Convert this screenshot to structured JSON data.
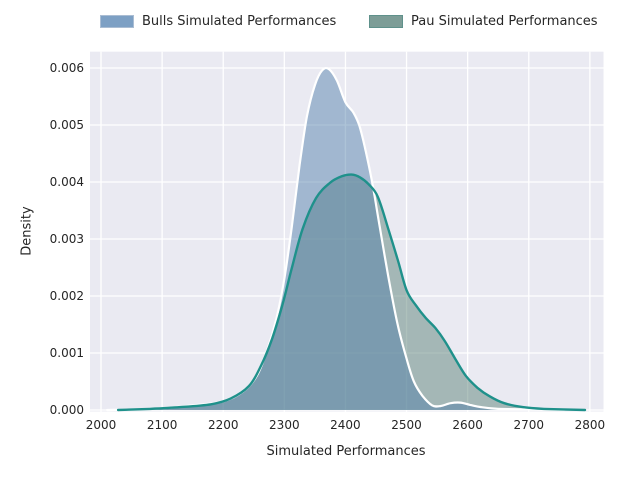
{
  "legend": {
    "items": [
      {
        "label": "Bulls Simulated Performances",
        "swatch_color": "#7da0c4",
        "swatch_border": "#aabdd3"
      },
      {
        "label": "Pau Simulated Performances",
        "swatch_color": "#7d9d97",
        "swatch_border": "#5f918b"
      }
    ]
  },
  "axes": {
    "xlabel": "Simulated Performances",
    "ylabel": "Density",
    "xticks": [
      {
        "value": 2000,
        "label": "2000"
      },
      {
        "value": 2100,
        "label": "2100"
      },
      {
        "value": 2200,
        "label": "2200"
      },
      {
        "value": 2300,
        "label": "2300"
      },
      {
        "value": 2400,
        "label": "2400"
      },
      {
        "value": 2500,
        "label": "2500"
      },
      {
        "value": 2600,
        "label": "2600"
      },
      {
        "value": 2700,
        "label": "2700"
      },
      {
        "value": 2800,
        "label": "2800"
      }
    ],
    "yticks": [
      {
        "value": 0.0,
        "label": "0.000"
      },
      {
        "value": 0.001,
        "label": "0.001"
      },
      {
        "value": 0.002,
        "label": "0.002"
      },
      {
        "value": 0.003,
        "label": "0.003"
      },
      {
        "value": 0.004,
        "label": "0.004"
      },
      {
        "value": 0.005,
        "label": "0.005"
      },
      {
        "value": 0.006,
        "label": "0.006"
      }
    ]
  },
  "colors": {
    "figure_bg": "#ffffff",
    "plot_bg": "#eaeaf2",
    "grid": "#ffffff",
    "text": "#262626"
  },
  "chart_data": {
    "type": "area",
    "subtype": "kde-density",
    "title": "",
    "xlabel": "Simulated Performances",
    "ylabel": "Density",
    "xlim": [
      1982,
      2822
    ],
    "ylim": [
      0,
      0.0063
    ],
    "grid": true,
    "legend_position": "top",
    "series": [
      {
        "name": "Bulls Simulated Performances",
        "fill": "#4a7ba6",
        "fill_opacity": 0.45,
        "line": "#ffffff",
        "line_width": 2.2,
        "peak": {
          "x": 2370,
          "density": 0.00598
        },
        "points": [
          [
            2010,
            0.0
          ],
          [
            2060,
            1e-05
          ],
          [
            2100,
            3e-05
          ],
          [
            2150,
            8e-05
          ],
          [
            2200,
            0.00015
          ],
          [
            2232,
            0.00032
          ],
          [
            2255,
            0.0006
          ],
          [
            2272,
            0.00105
          ],
          [
            2287,
            0.0016
          ],
          [
            2300,
            0.0023
          ],
          [
            2312,
            0.0032
          ],
          [
            2325,
            0.0043
          ],
          [
            2337,
            0.00515
          ],
          [
            2350,
            0.0057
          ],
          [
            2362,
            0.00596
          ],
          [
            2373,
            0.00598
          ],
          [
            2386,
            0.00578
          ],
          [
            2400,
            0.0054
          ],
          [
            2413,
            0.00522
          ],
          [
            2423,
            0.00498
          ],
          [
            2433,
            0.00455
          ],
          [
            2444,
            0.00398
          ],
          [
            2456,
            0.00322
          ],
          [
            2470,
            0.00235
          ],
          [
            2485,
            0.00152
          ],
          [
            2500,
            0.0009
          ],
          [
            2512,
            0.0005
          ],
          [
            2526,
            0.00025
          ],
          [
            2542,
            8e-05
          ],
          [
            2556,
            7e-05
          ],
          [
            2572,
            0.00012
          ],
          [
            2588,
            0.00013
          ],
          [
            2604,
            9e-05
          ],
          [
            2622,
            5e-05
          ],
          [
            2650,
            2e-05
          ],
          [
            2700,
            1e-05
          ],
          [
            2758,
            0.0
          ]
        ]
      },
      {
        "name": "Pau Simulated Performances",
        "fill": "#5e837a",
        "fill_opacity": 0.5,
        "line": "#1f918b",
        "line_width": 2.4,
        "peak": {
          "x": 2410,
          "density": 0.00413
        },
        "points": [
          [
            2028,
            0.0
          ],
          [
            2080,
            2e-05
          ],
          [
            2130,
            5e-05
          ],
          [
            2180,
            0.0001
          ],
          [
            2212,
            0.0002
          ],
          [
            2242,
            0.00042
          ],
          [
            2262,
            0.00078
          ],
          [
            2280,
            0.00125
          ],
          [
            2297,
            0.00185
          ],
          [
            2312,
            0.00248
          ],
          [
            2330,
            0.00318
          ],
          [
            2352,
            0.00372
          ],
          [
            2374,
            0.00398
          ],
          [
            2394,
            0.0041
          ],
          [
            2410,
            0.00413
          ],
          [
            2424,
            0.00408
          ],
          [
            2438,
            0.00396
          ],
          [
            2453,
            0.00374
          ],
          [
            2470,
            0.00318
          ],
          [
            2486,
            0.00262
          ],
          [
            2500,
            0.0021
          ],
          [
            2515,
            0.00184
          ],
          [
            2531,
            0.00162
          ],
          [
            2547,
            0.00144
          ],
          [
            2562,
            0.00122
          ],
          [
            2579,
            0.00091
          ],
          [
            2597,
            0.0006
          ],
          [
            2616,
            0.00039
          ],
          [
            2636,
            0.00024
          ],
          [
            2660,
            0.00012
          ],
          [
            2690,
            5e-05
          ],
          [
            2725,
            2e-05
          ],
          [
            2792,
            0.0
          ]
        ]
      }
    ]
  }
}
